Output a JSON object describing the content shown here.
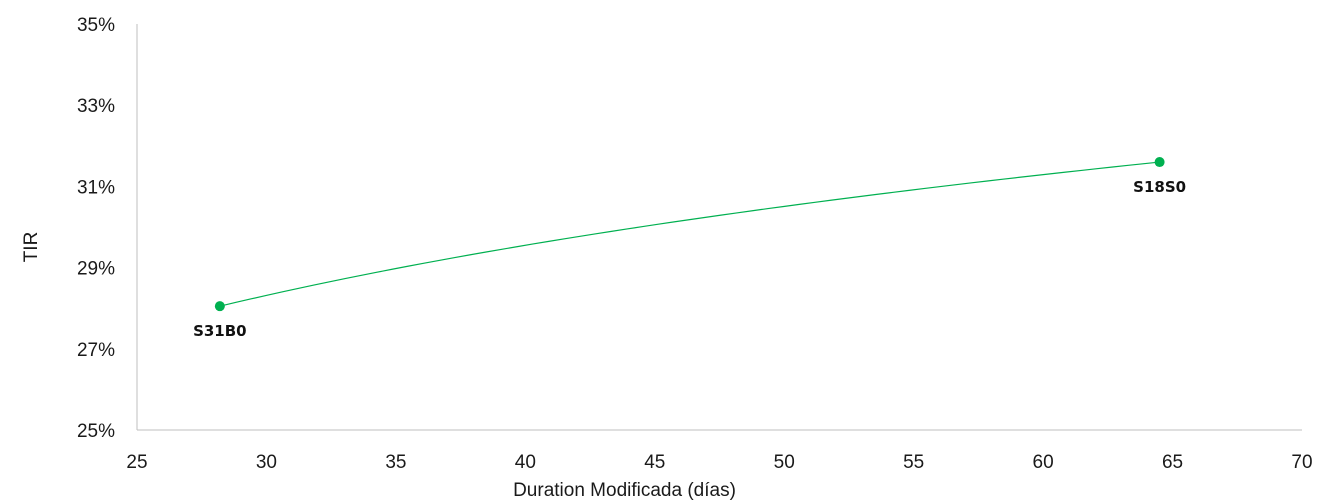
{
  "chart_data": {
    "type": "scatter",
    "xlabel": "Duration  Modificada (días)",
    "ylabel": "TIR",
    "xlim": [
      25,
      70
    ],
    "ylim": [
      25,
      35
    ],
    "x_ticks": [
      25,
      30,
      35,
      40,
      45,
      50,
      55,
      60,
      65,
      70
    ],
    "y_ticks": [
      25,
      27,
      29,
      31,
      33,
      35
    ],
    "y_tick_format": "%",
    "grid": false,
    "trendline": "logarithmic",
    "color": "#00b050",
    "points": [
      {
        "label": "S31B0",
        "x": 28.2,
        "y": 28.05
      },
      {
        "label": "S18S0",
        "x": 64.5,
        "y": 31.6
      }
    ]
  },
  "x_tick_labels": [
    "25",
    "30",
    "35",
    "40",
    "45",
    "50",
    "55",
    "60",
    "65",
    "70"
  ],
  "y_tick_labels": [
    "25%",
    "27%",
    "29%",
    "31%",
    "33%",
    "35%"
  ]
}
